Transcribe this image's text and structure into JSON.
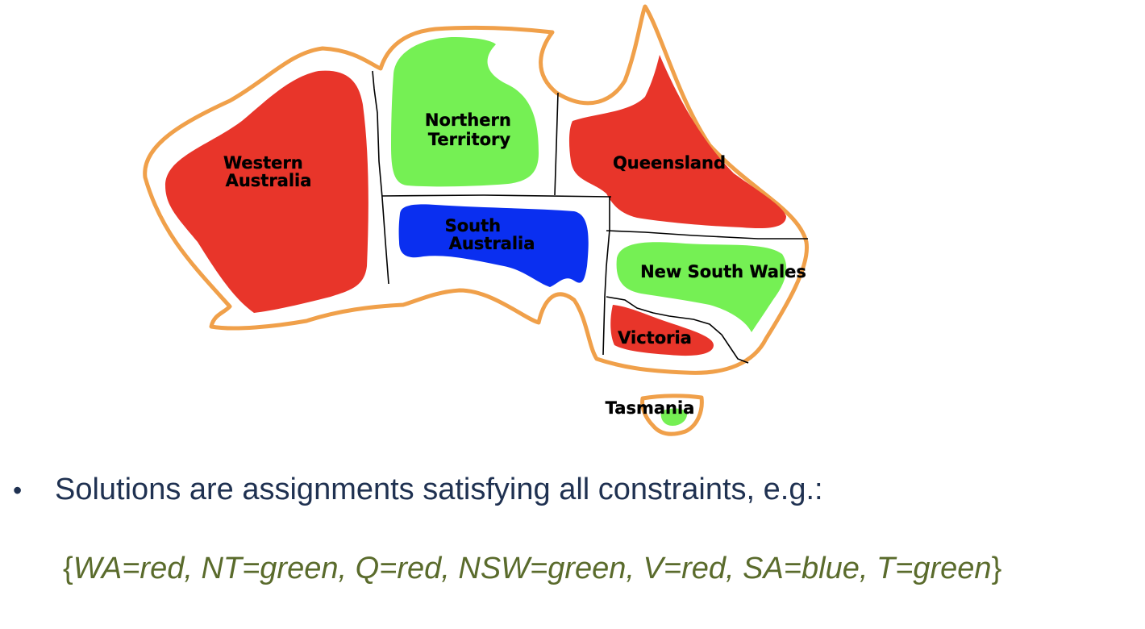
{
  "map": {
    "colors": {
      "red": "#e8352a",
      "green": "#75f054",
      "blue": "#0a2ff0",
      "outline": "#f0a04a",
      "border": "#000000"
    },
    "regions": [
      {
        "id": "western-australia",
        "lines": [
          "Western",
          "Australia"
        ],
        "color": "red"
      },
      {
        "id": "northern-territory",
        "lines": [
          "Northern",
          "Territory"
        ],
        "color": "green"
      },
      {
        "id": "queensland",
        "lines": [
          "Queensland"
        ],
        "color": "red"
      },
      {
        "id": "south-australia",
        "lines": [
          "South",
          "Australia"
        ],
        "color": "blue"
      },
      {
        "id": "new-south-wales",
        "lines": [
          "New South Wales"
        ],
        "color": "green"
      },
      {
        "id": "victoria",
        "lines": [
          "Victoria"
        ],
        "color": "red"
      },
      {
        "id": "tasmania",
        "lines": [
          "Tasmania"
        ],
        "color": "green"
      }
    ]
  },
  "text": {
    "bullet_symbol": "•",
    "bullet": "Solutions are assignments satisfying all constraints, e.g.:",
    "solution_open": "{",
    "solution_body": "WA=red, NT=green, Q=red, NSW=green, V=red, SA=blue, T=green",
    "solution_close": "}"
  }
}
